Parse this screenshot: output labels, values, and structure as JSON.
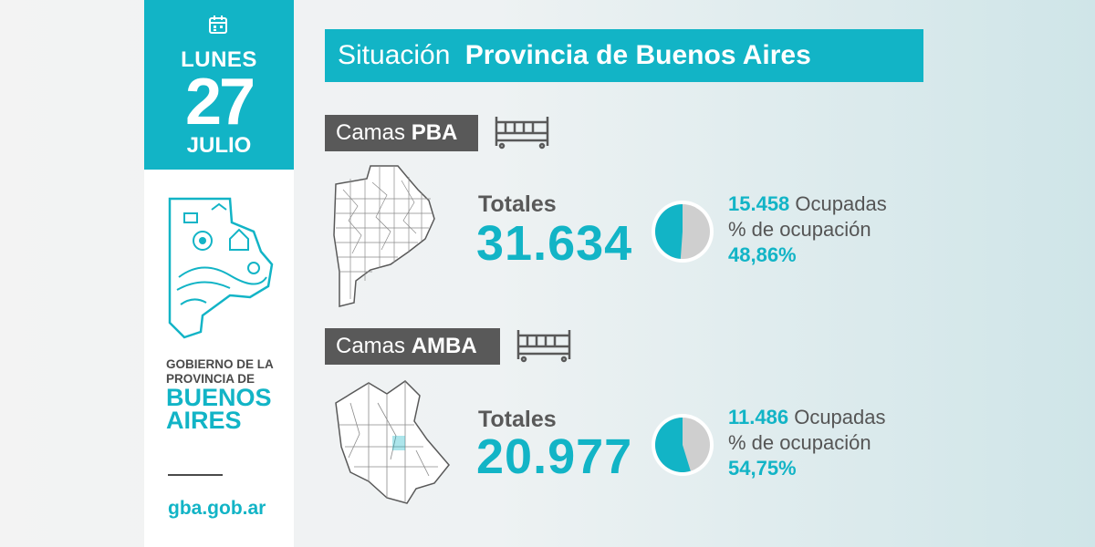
{
  "date": {
    "day": "LUNES",
    "number": "27",
    "month": "JULIO"
  },
  "government": {
    "line1": "GOBIERNO DE LA",
    "line2": "PROVINCIA DE",
    "big1": "BUENOS",
    "big2": "AIRES",
    "url": "gba.gob.ar"
  },
  "title": {
    "prefix": "Situación",
    "bold": "Provincia de Buenos Aires"
  },
  "colors": {
    "accent": "#12b4c6",
    "dark": "#595959",
    "pie_rest": "#cfcfcf"
  },
  "sections": [
    {
      "label_prefix": "Camas",
      "label_bold": "PBA",
      "totales_label": "Totales",
      "totales_value": "31.634",
      "ocupadas_value": "15.458",
      "ocupadas_label": "Ocupadas",
      "ocupacion_label": "% de ocupación",
      "ocupacion_value": "48,86%",
      "ocupacion_fraction": 0.4886
    },
    {
      "label_prefix": "Camas",
      "label_bold": "AMBA",
      "totales_label": "Totales",
      "totales_value": "20.977",
      "ocupadas_value": "11.486",
      "ocupadas_label": "Ocupadas",
      "ocupacion_label": "% de ocupación",
      "ocupacion_value": "54,75%",
      "ocupacion_fraction": 0.5475
    }
  ]
}
